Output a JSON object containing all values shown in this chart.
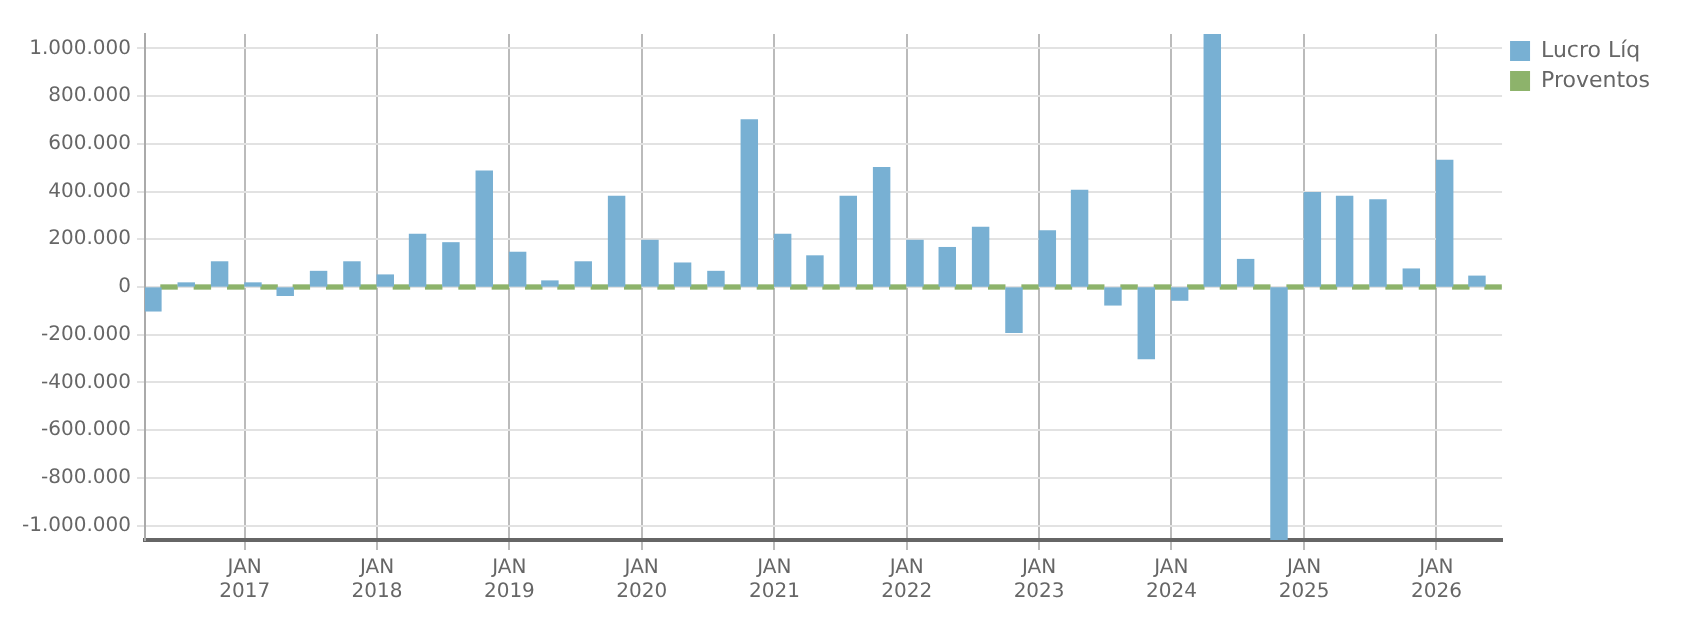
{
  "chart_data": {
    "type": "bar",
    "x": [
      "2016-05-15",
      "2016-08-15",
      "2016-11-15",
      "2017-02-15",
      "2017-05-15",
      "2017-08-15",
      "2017-11-15",
      "2018-02-15",
      "2018-05-15",
      "2018-08-15",
      "2018-11-15",
      "2019-02-15",
      "2019-05-15",
      "2019-08-15",
      "2019-11-15",
      "2020-02-15",
      "2020-05-15",
      "2020-08-15",
      "2020-11-15",
      "2021-02-15",
      "2021-05-15",
      "2021-08-15",
      "2021-11-15",
      "2022-02-15",
      "2022-05-15",
      "2022-08-15",
      "2022-11-15",
      "2023-02-15",
      "2023-05-15",
      "2023-08-15",
      "2023-11-15",
      "2024-02-15",
      "2024-05-15",
      "2024-08-15",
      "2024-11-15",
      "2025-02-15",
      "2025-05-15",
      "2025-08-15",
      "2025-11-15",
      "2026-02-15",
      "2026-05-15"
    ],
    "series": [
      {
        "name": "Lucro Líq",
        "color": "#78b0d3",
        "values": [
          -100000,
          10000,
          105000,
          10000,
          -35000,
          65000,
          105000,
          50000,
          220000,
          185000,
          485000,
          145000,
          25000,
          105000,
          380000,
          195000,
          100000,
          65000,
          700000,
          220000,
          130000,
          380000,
          500000,
          195000,
          165000,
          250000,
          -190000,
          235000,
          405000,
          -75000,
          -300000,
          -55000,
          1060000,
          115000,
          -1060000,
          395000,
          380000,
          365000,
          75000,
          530000,
          45000
        ]
      },
      {
        "name": "Proventos",
        "color": "#8db36b",
        "values": [
          0,
          0,
          0,
          0,
          0,
          0,
          0,
          0,
          0,
          0,
          0,
          0,
          0,
          0,
          0,
          0,
          0,
          0,
          0,
          0,
          0,
          0,
          0,
          0,
          0,
          0,
          0,
          0,
          0,
          0,
          0,
          0,
          0,
          0,
          0,
          0,
          0,
          0,
          0,
          0,
          0
        ]
      }
    ],
    "xlim": [
      "2016-04-01",
      "2026-07-01"
    ],
    "xticks": [
      {
        "value": "2017-01-01",
        "label": "JAN 2017"
      },
      {
        "value": "2018-01-01",
        "label": "JAN 2018"
      },
      {
        "value": "2019-01-01",
        "label": "JAN 2019"
      },
      {
        "value": "2020-01-01",
        "label": "JAN 2020"
      },
      {
        "value": "2021-01-01",
        "label": "JAN 2021"
      },
      {
        "value": "2022-01-01",
        "label": "JAN 2022"
      },
      {
        "value": "2023-01-01",
        "label": "JAN 2023"
      },
      {
        "value": "2024-01-01",
        "label": "JAN 2024"
      },
      {
        "value": "2025-01-01",
        "label": "JAN 2025"
      },
      {
        "value": "2026-01-01",
        "label": "JAN 2026"
      }
    ],
    "ylim": [
      -1060000,
      1060000
    ],
    "yticks": [
      {
        "value": -1000000,
        "label": "-1.000.000"
      },
      {
        "value": -800000,
        "label": "-800.000"
      },
      {
        "value": -600000,
        "label": "-600.000"
      },
      {
        "value": -400000,
        "label": "-400.000"
      },
      {
        "value": -200000,
        "label": "-200.000"
      },
      0,
      {
        "value": 200000,
        "label": "200.000"
      },
      {
        "value": 400000,
        "label": "400.000"
      },
      {
        "value": 600000,
        "label": "600.000"
      },
      {
        "value": 800000,
        "label": "800.000"
      },
      {
        "value": 1000000,
        "label": "1.000.000"
      }
    ],
    "grid": true,
    "legend": "top right"
  }
}
